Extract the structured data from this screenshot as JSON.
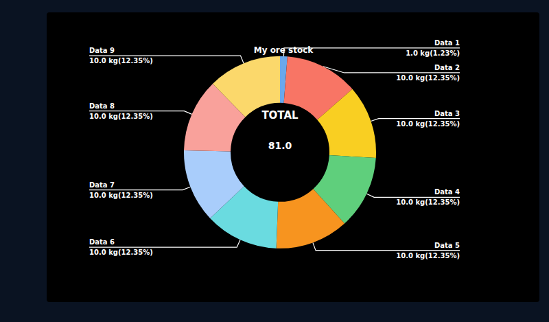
{
  "chart_data": {
    "type": "pie",
    "title": "My ore stock",
    "categories": [
      "Data 1",
      "Data 2",
      "Data 3",
      "Data 4",
      "Data 5",
      "Data 6",
      "Data 7",
      "Data 8",
      "Data 9"
    ],
    "values": [
      1.0,
      10.0,
      10.0,
      10.0,
      10.0,
      10.0,
      10.0,
      10.0,
      10.0
    ],
    "value_labels": [
      "1.0 kg(1.23%)",
      "10.0 kg(12.35%)",
      "10.0 kg(12.35%)",
      "10.0 kg(12.35%)",
      "10.0 kg(12.35%)",
      "10.0 kg(12.35%)",
      "10.0 kg(12.35%)",
      "10.0 kg(12.35%)",
      "10.0 kg(12.35%)"
    ],
    "colors": [
      "#6aa8ec",
      "#f87565",
      "#f9cf22",
      "#5fcf7c",
      "#f7941f",
      "#6adbe0",
      "#a9cdfb",
      "#f9a19b",
      "#fbd86b"
    ],
    "center_label": "TOTAL",
    "total": "81.0",
    "data_labels": true
  }
}
